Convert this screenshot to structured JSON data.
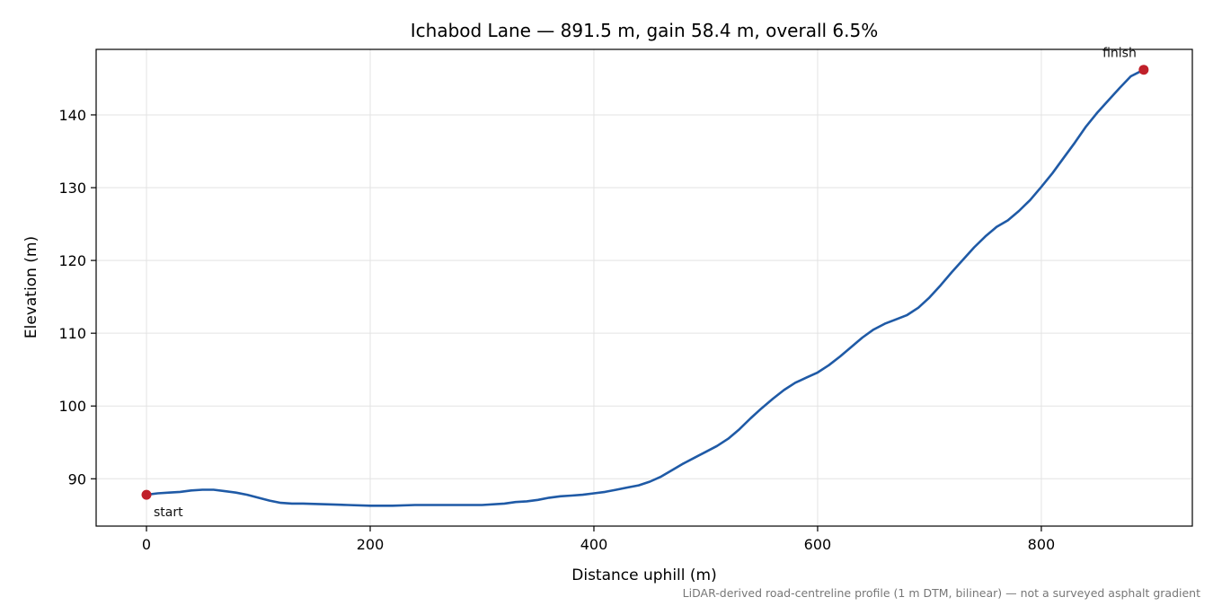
{
  "chart_data": {
    "type": "line",
    "title": "Ichabod Lane — 891.5 m, gain 58.4 m, overall 6.5%",
    "xlabel": "Distance uphill (m)",
    "ylabel": "Elevation (m)",
    "footnote": "LiDAR-derived road-centreline profile (1 m DTM, bilinear) — not a surveyed asphalt gradient",
    "xlim": [
      -45,
      935
    ],
    "ylim": [
      83.5,
      149
    ],
    "xticks": [
      0,
      200,
      400,
      600,
      800
    ],
    "yticks": [
      90,
      100,
      110,
      120,
      130,
      140
    ],
    "grid": true,
    "line_color": "#1f5aa6",
    "marker_color": "#c0202a",
    "series": [
      {
        "x": [
          0,
          10,
          20,
          30,
          40,
          50,
          60,
          70,
          80,
          90,
          100,
          110,
          120,
          130,
          140,
          160,
          180,
          200,
          220,
          240,
          260,
          280,
          300,
          320,
          330,
          340,
          350,
          360,
          370,
          380,
          390,
          400,
          410,
          420,
          430,
          440,
          450,
          460,
          470,
          480,
          490,
          500,
          510,
          520,
          530,
          540,
          550,
          560,
          570,
          580,
          590,
          600,
          610,
          620,
          630,
          640,
          650,
          660,
          670,
          680,
          690,
          700,
          710,
          720,
          730,
          740,
          750,
          760,
          770,
          780,
          790,
          800,
          810,
          820,
          830,
          840,
          850,
          860,
          870,
          880,
          891.5
        ],
        "y": [
          87.8,
          88.0,
          88.1,
          88.2,
          88.4,
          88.5,
          88.5,
          88.3,
          88.1,
          87.8,
          87.4,
          87.0,
          86.7,
          86.6,
          86.6,
          86.5,
          86.4,
          86.3,
          86.3,
          86.4,
          86.4,
          86.4,
          86.4,
          86.6,
          86.8,
          86.9,
          87.1,
          87.4,
          87.6,
          87.7,
          87.8,
          88.0,
          88.2,
          88.5,
          88.8,
          89.1,
          89.6,
          90.3,
          91.2,
          92.1,
          92.9,
          93.7,
          94.5,
          95.5,
          96.8,
          98.3,
          99.7,
          101.0,
          102.2,
          103.2,
          103.9,
          104.6,
          105.6,
          106.8,
          108.1,
          109.4,
          110.5,
          111.3,
          111.9,
          112.5,
          113.5,
          114.9,
          116.6,
          118.4,
          120.1,
          121.8,
          123.3,
          124.6,
          125.5,
          126.8,
          128.3,
          130.1,
          132.0,
          134.1,
          136.2,
          138.4,
          140.3,
          142.0,
          143.7,
          145.3,
          146.2
        ]
      }
    ],
    "annotations": [
      {
        "label": "start",
        "x": 0,
        "y": 87.8
      },
      {
        "label": "finish",
        "x": 891.5,
        "y": 146.2
      }
    ]
  }
}
